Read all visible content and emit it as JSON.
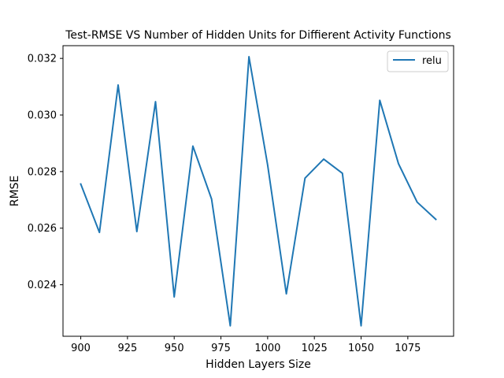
{
  "chart_data": {
    "type": "line",
    "title": "Test-RMSE VS Number of Hidden Units for Diffierent Activity Functions",
    "xlabel": "Hidden Layers Size",
    "ylabel": "RMSE",
    "xlim": [
      890.5,
      1099.5
    ],
    "ylim": [
      0.02218,
      0.03245
    ],
    "xticks": [
      900,
      925,
      950,
      975,
      1000,
      1025,
      1050,
      1075
    ],
    "xtick_labels": [
      "900",
      "925",
      "950",
      "975",
      "1000",
      "1025",
      "1050",
      "1075"
    ],
    "yticks": [
      0.024,
      0.026,
      0.028,
      0.03,
      0.032
    ],
    "ytick_labels": [
      "0.024",
      "0.026",
      "0.028",
      "0.030",
      "0.032"
    ],
    "grid": false,
    "legend_position": "top-right",
    "series": [
      {
        "name": "relu",
        "color": "#1f77b4",
        "x": [
          900,
          910,
          920,
          930,
          940,
          950,
          960,
          970,
          980,
          990,
          1000,
          1010,
          1020,
          1030,
          1040,
          1050,
          1060,
          1070,
          1080,
          1090
        ],
        "y": [
          0.02756,
          0.02585,
          0.03106,
          0.02588,
          0.03047,
          0.02357,
          0.0289,
          0.02703,
          0.02255,
          0.03206,
          0.02823,
          0.02368,
          0.02777,
          0.02844,
          0.02794,
          0.02255,
          0.03052,
          0.02828,
          0.02692,
          0.02631
        ]
      }
    ]
  }
}
